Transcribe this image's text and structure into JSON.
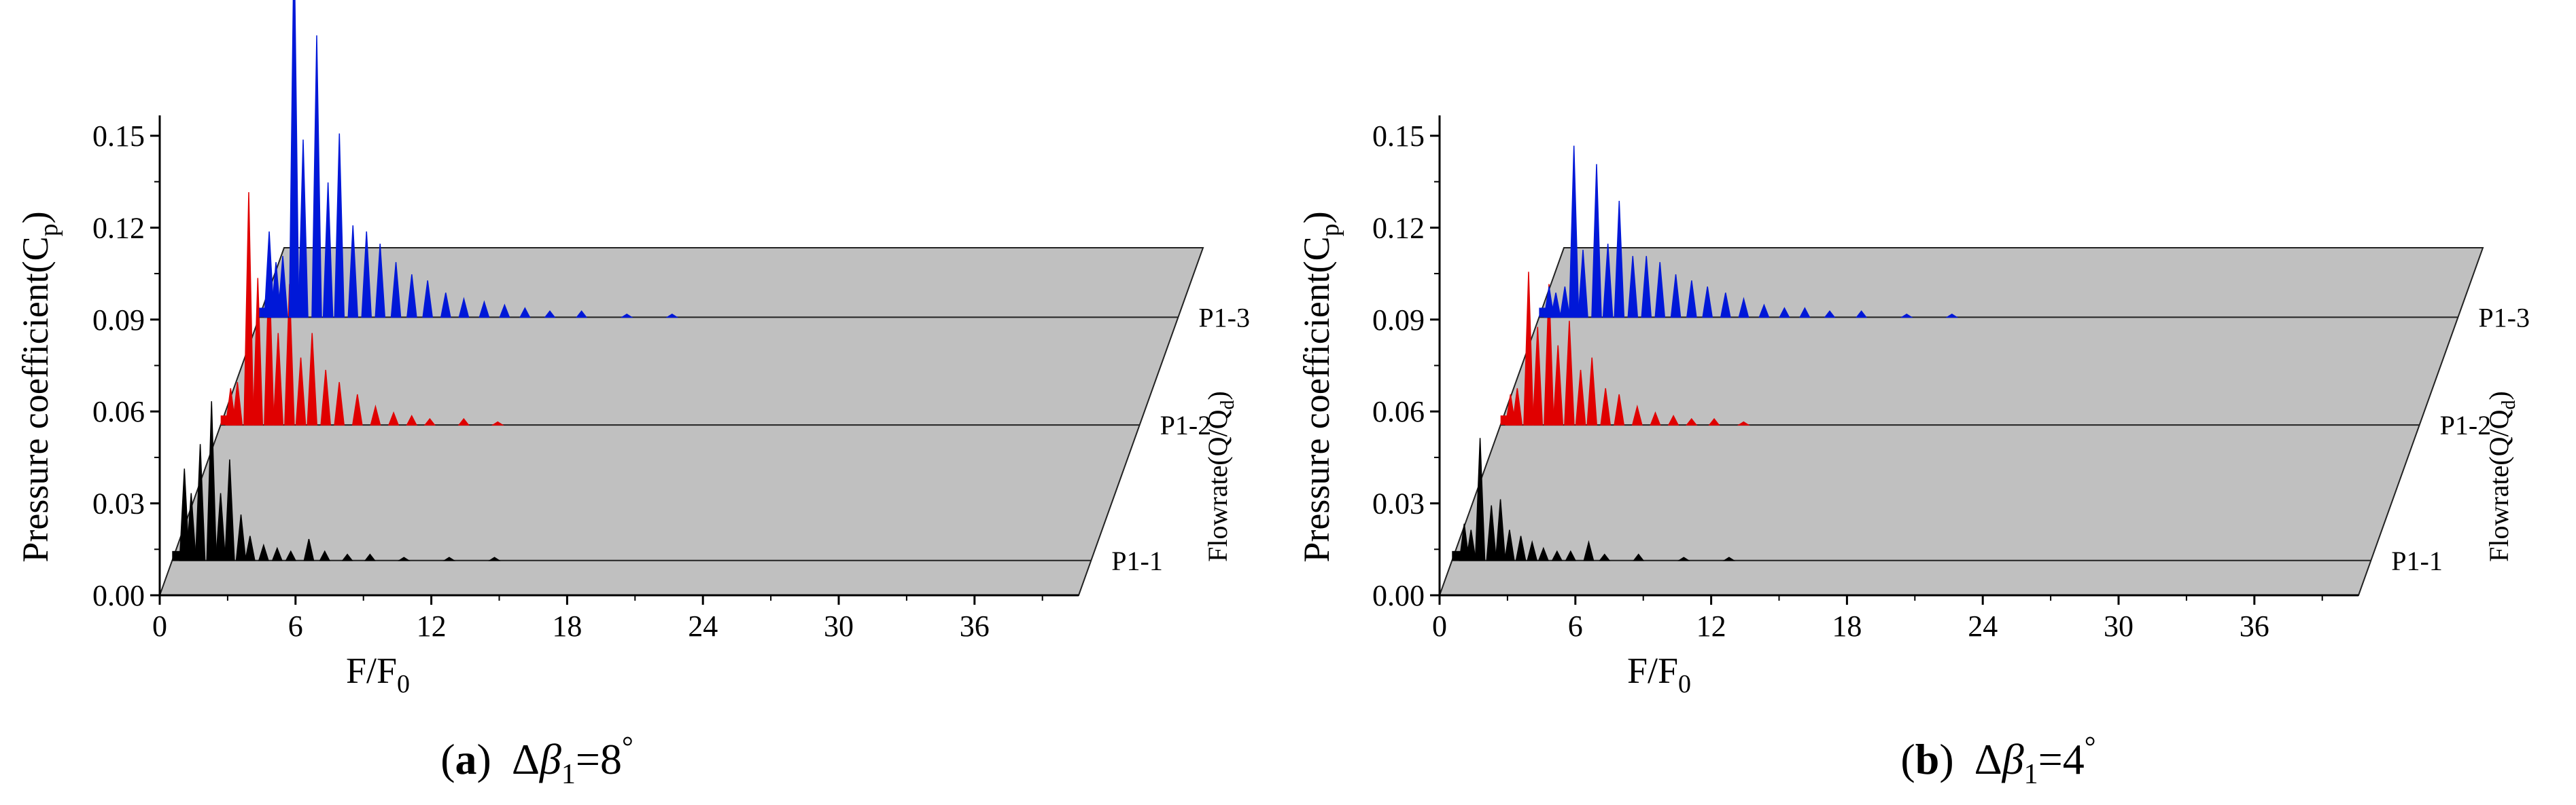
{
  "figure": {
    "panels": [
      {
        "id": "a",
        "label": "a",
        "caption_expr": "Δβ1=8°",
        "caption_prefix": "(",
        "caption_suffix": ")",
        "delta": "Δ",
        "beta": "β",
        "sub": "1",
        "value": "=8",
        "deg": "°"
      },
      {
        "id": "b",
        "label": "b",
        "caption_expr": "Δβ1=4°",
        "caption_prefix": "(",
        "caption_suffix": ")",
        "delta": "Δ",
        "beta": "β",
        "sub": "1",
        "value": "=4",
        "deg": "°"
      }
    ]
  },
  "chart_data": [
    {
      "type": "waterfall",
      "panel": "a",
      "ylabel": "Pressure  coefficient(C",
      "ylabel_sub": "p",
      "ylabel_close": ")",
      "xlabel": "F/F",
      "xlabel_sub": "0",
      "zlabel": "Flowrate(Q/Q",
      "zlabel_sub": "d",
      "zlabel_close": ")",
      "x_ticks": [
        "0",
        "6",
        "12",
        "18",
        "24",
        "30",
        "36"
      ],
      "x_tick_values": [
        0,
        6,
        12,
        18,
        24,
        30,
        36
      ],
      "y_ticks": [
        "0.00",
        "0.03",
        "0.06",
        "0.09",
        "0.12",
        "0.15"
      ],
      "y_tick_values": [
        0.0,
        0.03,
        0.06,
        0.09,
        0.12,
        0.15
      ],
      "xlim": [
        0,
        40
      ],
      "ylim": [
        0,
        0.15
      ],
      "plane_color": "#c0c0c0",
      "series": [
        {
          "name": "P1-1",
          "color": "#000000",
          "peaks": [
            [
              0.3,
              0.03
            ],
            [
              0.6,
              0.022
            ],
            [
              1.0,
              0.038
            ],
            [
              1.5,
              0.052
            ],
            [
              1.9,
              0.022
            ],
            [
              2.3,
              0.033
            ],
            [
              2.8,
              0.015
            ],
            [
              3.2,
              0.008
            ],
            [
              3.8,
              0.005
            ],
            [
              4.4,
              0.004
            ],
            [
              5.0,
              0.003
            ],
            [
              5.8,
              0.007
            ],
            [
              6.5,
              0.003
            ],
            [
              7.5,
              0.002
            ],
            [
              8.5,
              0.002
            ],
            [
              10.0,
              0.001
            ],
            [
              12.0,
              0.001
            ],
            [
              14.0,
              0.001
            ]
          ]
        },
        {
          "name": "P1-2",
          "color": "#e00000",
          "peaks": [
            [
              0.2,
              0.012
            ],
            [
              0.5,
              0.014
            ],
            [
              1.0,
              0.076
            ],
            [
              1.4,
              0.048
            ],
            [
              1.9,
              0.052
            ],
            [
              2.3,
              0.03
            ],
            [
              2.8,
              0.046
            ],
            [
              3.3,
              0.022
            ],
            [
              3.8,
              0.03
            ],
            [
              4.4,
              0.018
            ],
            [
              5.0,
              0.014
            ],
            [
              5.8,
              0.01
            ],
            [
              6.6,
              0.006
            ],
            [
              7.4,
              0.004
            ],
            [
              8.2,
              0.003
            ],
            [
              9.0,
              0.002
            ],
            [
              10.5,
              0.002
            ],
            [
              12.0,
              0.001
            ]
          ]
        },
        {
          "name": "P1-3",
          "color": "#0018d8",
          "peaks": [
            [
              0.2,
              0.028
            ],
            [
              0.5,
              0.018
            ],
            [
              0.8,
              0.02
            ],
            [
              1.3,
              0.126
            ],
            [
              1.7,
              0.058
            ],
            [
              2.3,
              0.092
            ],
            [
              2.8,
              0.044
            ],
            [
              3.3,
              0.06
            ],
            [
              3.9,
              0.03
            ],
            [
              4.5,
              0.028
            ],
            [
              5.1,
              0.024
            ],
            [
              5.8,
              0.018
            ],
            [
              6.5,
              0.014
            ],
            [
              7.2,
              0.012
            ],
            [
              8.0,
              0.008
            ],
            [
              8.8,
              0.006
            ],
            [
              9.7,
              0.005
            ],
            [
              10.6,
              0.004
            ],
            [
              11.5,
              0.003
            ],
            [
              12.6,
              0.002
            ],
            [
              14.0,
              0.002
            ],
            [
              16.0,
              0.001
            ],
            [
              18.0,
              0.001
            ]
          ]
        }
      ]
    },
    {
      "type": "waterfall",
      "panel": "b",
      "ylabel": "Pressure  coefficient(C",
      "ylabel_sub": "p",
      "ylabel_close": ")",
      "xlabel": "F/F",
      "xlabel_sub": "0",
      "zlabel": "Flowrate(Q/Q",
      "zlabel_sub": "d",
      "zlabel_close": ")",
      "x_ticks": [
        "0",
        "6",
        "12",
        "18",
        "24",
        "30",
        "36"
      ],
      "x_tick_values": [
        0,
        6,
        12,
        18,
        24,
        30,
        36
      ],
      "y_ticks": [
        "0.00",
        "0.03",
        "0.06",
        "0.09",
        "0.12",
        "0.15"
      ],
      "y_tick_values": [
        0.0,
        0.03,
        0.06,
        0.09,
        0.12,
        0.15
      ],
      "xlim": [
        0,
        40
      ],
      "ylim": [
        0,
        0.15
      ],
      "plane_color": "#c0c0c0",
      "series": [
        {
          "name": "P1-1",
          "color": "#000000",
          "peaks": [
            [
              0.3,
              0.012
            ],
            [
              0.6,
              0.01
            ],
            [
              1.0,
              0.04
            ],
            [
              1.5,
              0.018
            ],
            [
              1.9,
              0.02
            ],
            [
              2.3,
              0.01
            ],
            [
              2.8,
              0.008
            ],
            [
              3.3,
              0.006
            ],
            [
              3.8,
              0.004
            ],
            [
              4.4,
              0.003
            ],
            [
              5.0,
              0.003
            ],
            [
              5.8,
              0.006
            ],
            [
              6.5,
              0.002
            ],
            [
              8.0,
              0.002
            ],
            [
              10.0,
              0.001
            ],
            [
              12.0,
              0.001
            ]
          ]
        },
        {
          "name": "P1-2",
          "color": "#e00000",
          "peaks": [
            [
              0.2,
              0.01
            ],
            [
              0.5,
              0.012
            ],
            [
              1.0,
              0.05
            ],
            [
              1.4,
              0.032
            ],
            [
              1.9,
              0.046
            ],
            [
              2.3,
              0.026
            ],
            [
              2.8,
              0.034
            ],
            [
              3.3,
              0.018
            ],
            [
              3.8,
              0.022
            ],
            [
              4.4,
              0.012
            ],
            [
              5.0,
              0.01
            ],
            [
              5.8,
              0.006
            ],
            [
              6.6,
              0.004
            ],
            [
              7.4,
              0.003
            ],
            [
              8.2,
              0.002
            ],
            [
              9.2,
              0.002
            ],
            [
              10.5,
              0.001
            ]
          ]
        },
        {
          "name": "P1-3",
          "color": "#0018d8",
          "peaks": [
            [
              0.2,
              0.01
            ],
            [
              0.5,
              0.008
            ],
            [
              0.9,
              0.01
            ],
            [
              1.3,
              0.056
            ],
            [
              1.7,
              0.022
            ],
            [
              2.3,
              0.05
            ],
            [
              2.8,
              0.024
            ],
            [
              3.3,
              0.038
            ],
            [
              3.9,
              0.02
            ],
            [
              4.5,
              0.02
            ],
            [
              5.1,
              0.018
            ],
            [
              5.8,
              0.014
            ],
            [
              6.5,
              0.012
            ],
            [
              7.2,
              0.01
            ],
            [
              8.0,
              0.008
            ],
            [
              8.8,
              0.006
            ],
            [
              9.7,
              0.004
            ],
            [
              10.6,
              0.003
            ],
            [
              11.5,
              0.003
            ],
            [
              12.6,
              0.002
            ],
            [
              14.0,
              0.002
            ],
            [
              16.0,
              0.001
            ],
            [
              18.0,
              0.001
            ]
          ]
        }
      ]
    }
  ]
}
